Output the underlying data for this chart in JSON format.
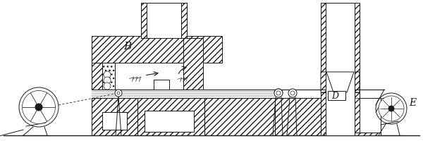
{
  "bg_color": "#ffffff",
  "line_color": "#1a1a1a",
  "figsize": [
    6.0,
    2.01
  ],
  "dpi": 100,
  "xlim": [
    0,
    600
  ],
  "ylim": [
    0,
    201
  ]
}
